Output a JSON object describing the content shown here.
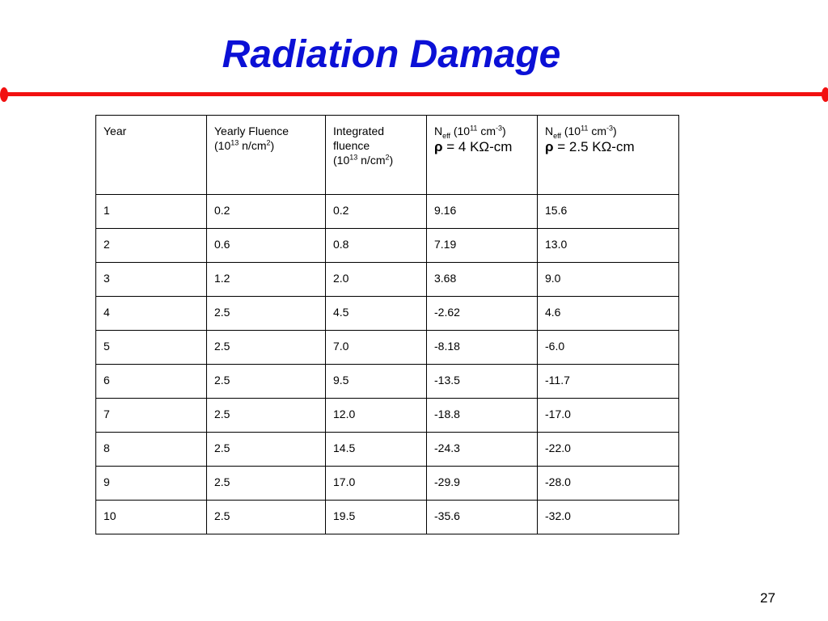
{
  "slide": {
    "title": "Radiation Damage",
    "page_number": "27",
    "accent_color": "#0b10d6",
    "rule_color": "#f21010"
  },
  "table": {
    "headers": {
      "year": "Year",
      "yearly_fluence": {
        "label": "Yearly Fluence",
        "unit_pre": "(10",
        "exp1": "13",
        "unit_mid": " n/cm",
        "exp2": "2",
        "unit_post": ")"
      },
      "integrated_fluence": {
        "label": "Integrated fluence",
        "unit_pre": "(10",
        "exp1": "13",
        "unit_mid": " n/cm",
        "exp2": "2",
        "unit_post": ")"
      },
      "neff_4": {
        "sym": "N",
        "sub": "eff",
        "unit_pre": " (10",
        "exp1": "11",
        "unit_mid": " cm",
        "exp2": "-3",
        "unit_post": ")",
        "rho": "ρ",
        "rho_eq": " = ",
        "value": "4 KΩ-cm"
      },
      "neff_25": {
        "sym": "N",
        "sub": "eff",
        "unit_pre": " (10",
        "exp1": "11",
        "unit_mid": " cm",
        "exp2": "-3",
        "unit_post": ")",
        "rho": "ρ",
        "rho_eq": " = ",
        "value": "2.5 KΩ-cm"
      }
    },
    "rows": [
      [
        "1",
        "0.2",
        "0.2",
        "9.16",
        "15.6"
      ],
      [
        "2",
        "0.6",
        "0.8",
        "7.19",
        "13.0"
      ],
      [
        "3",
        "1.2",
        "2.0",
        "3.68",
        "9.0"
      ],
      [
        "4",
        "2.5",
        "4.5",
        "-2.62",
        "4.6"
      ],
      [
        "5",
        "2.5",
        "7.0",
        "-8.18",
        "-6.0"
      ],
      [
        "6",
        "2.5",
        "9.5",
        "-13.5",
        "-11.7"
      ],
      [
        "7",
        "2.5",
        "12.0",
        "-18.8",
        "-17.0"
      ],
      [
        "8",
        "2.5",
        "14.5",
        "-24.3",
        "-22.0"
      ],
      [
        "9",
        "2.5",
        "17.0",
        "-29.9",
        "-28.0"
      ],
      [
        "10",
        "2.5",
        "19.5",
        "-35.6",
        "-32.0"
      ]
    ]
  }
}
